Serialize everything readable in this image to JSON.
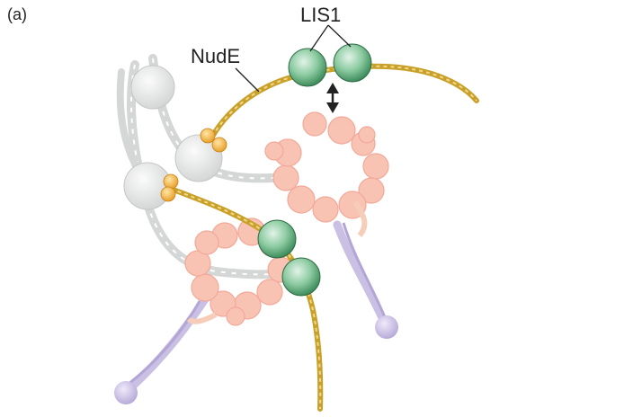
{
  "figure": {
    "panel_label": "(a)",
    "labels": {
      "lis1": "LIS1",
      "nude": "NudE"
    }
  },
  "colors": {
    "nude_coil": "#c8a02a",
    "lis1": "#6ab487",
    "dynein_head": "#f7b7a6",
    "dynein_stalk": "#c6bce0",
    "dynactin": "#d9dbdb",
    "pivot": "#f0a93a"
  }
}
